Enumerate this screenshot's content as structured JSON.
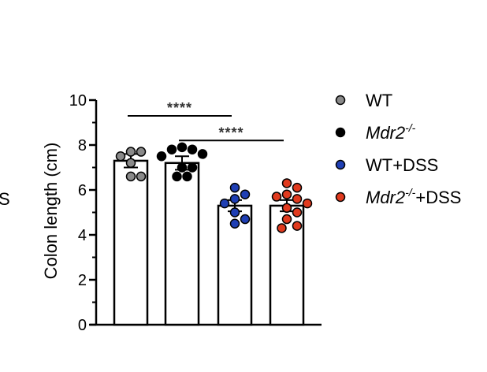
{
  "chart_data": {
    "type": "bar",
    "ylabel": "Colon length (cm)",
    "ylim": [
      0,
      10
    ],
    "yticks": [
      "0",
      "2",
      "4",
      "6",
      "8",
      "10"
    ],
    "categories": [
      "WT",
      "Mdr2-/-",
      "WT+DSS",
      "Mdr2-/-+DSS"
    ],
    "values": [
      7.3,
      7.2,
      5.3,
      5.3
    ],
    "sem": [
      0.3,
      0.3,
      0.25,
      0.25
    ],
    "points": [
      [
        7.7,
        7.7,
        7.5,
        7.2,
        6.6,
        6.6
      ],
      [
        7.9,
        7.8,
        7.8,
        7.6,
        7.5,
        7.0,
        7.0,
        6.6,
        6.6
      ],
      [
        6.1,
        5.8,
        5.6,
        5.4,
        5.0,
        4.7,
        4.5
      ],
      [
        6.3,
        6.1,
        5.8,
        5.7,
        5.6,
        5.4,
        5.2,
        5.0,
        4.7,
        4.4,
        4.3
      ]
    ],
    "colors": [
      "#8a8a8a",
      "#000000",
      "#1f3fb4",
      "#e03a1e"
    ],
    "legend": [
      {
        "base": "WT",
        "sup": "",
        "tail": "",
        "italic": false
      },
      {
        "base": "Mdr2",
        "sup": "-/-",
        "tail": "",
        "italic": true
      },
      {
        "base": "WT+DSS",
        "sup": "",
        "tail": "",
        "italic": false
      },
      {
        "base": "Mdr2",
        "sup": "-/-",
        "tail": "+DSS",
        "italic": true
      }
    ],
    "significance": [
      {
        "from": 0,
        "to": 2,
        "label": "****",
        "y": 9.3
      },
      {
        "from": 1,
        "to": 3,
        "label": "****",
        "y": 8.2
      }
    ],
    "edge_text": "S"
  }
}
